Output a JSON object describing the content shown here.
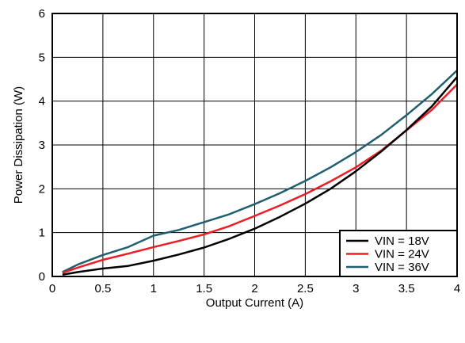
{
  "chart_data": {
    "type": "line",
    "title": "",
    "xlabel": "Output Current (A)",
    "ylabel": "Power Dissipation (W)",
    "xlim": [
      0,
      4
    ],
    "ylim": [
      0,
      6
    ],
    "x_ticks": [
      0,
      0.5,
      1,
      1.5,
      2,
      2.5,
      3,
      3.5,
      4
    ],
    "x_tick_labels": [
      "0",
      "0.5",
      "1",
      "1.5",
      "2",
      "2.5",
      "3",
      "3.5",
      "4"
    ],
    "y_ticks": [
      0,
      1,
      2,
      3,
      4,
      5,
      6
    ],
    "y_tick_labels": [
      "0",
      "1",
      "2",
      "3",
      "4",
      "5",
      "6"
    ],
    "grid": true,
    "legend_position": "bottom-right",
    "series": [
      {
        "name": "VIN = 18V",
        "color": "#000000",
        "x": [
          0.1,
          0.25,
          0.5,
          0.75,
          1.0,
          1.25,
          1.5,
          1.75,
          2.0,
          2.25,
          2.5,
          2.75,
          3.0,
          3.25,
          3.5,
          3.75,
          4.0
        ],
        "y": [
          0.04,
          0.1,
          0.18,
          0.24,
          0.36,
          0.5,
          0.66,
          0.86,
          1.09,
          1.36,
          1.66,
          2.0,
          2.4,
          2.85,
          3.34,
          3.88,
          4.55
        ]
      },
      {
        "name": "VIN = 24V",
        "color": "#ee1c24",
        "x": [
          0.1,
          0.25,
          0.5,
          0.75,
          1.0,
          1.25,
          1.5,
          1.75,
          2.0,
          2.25,
          2.5,
          2.75,
          3.0,
          3.25,
          3.5,
          3.75,
          4.0
        ],
        "y": [
          0.08,
          0.2,
          0.38,
          0.52,
          0.67,
          0.81,
          0.96,
          1.15,
          1.38,
          1.62,
          1.88,
          2.17,
          2.49,
          2.87,
          3.33,
          3.8,
          4.38
        ]
      },
      {
        "name": "VIN = 36V",
        "color": "#1f5f6f",
        "x": [
          0.1,
          0.25,
          0.5,
          0.75,
          1.0,
          1.25,
          1.5,
          1.75,
          2.0,
          2.25,
          2.5,
          2.75,
          3.0,
          3.25,
          3.5,
          3.75,
          4.0
        ],
        "y": [
          0.1,
          0.27,
          0.49,
          0.67,
          0.93,
          1.06,
          1.24,
          1.42,
          1.65,
          1.9,
          2.18,
          2.49,
          2.84,
          3.23,
          3.68,
          4.16,
          4.7
        ]
      }
    ]
  }
}
